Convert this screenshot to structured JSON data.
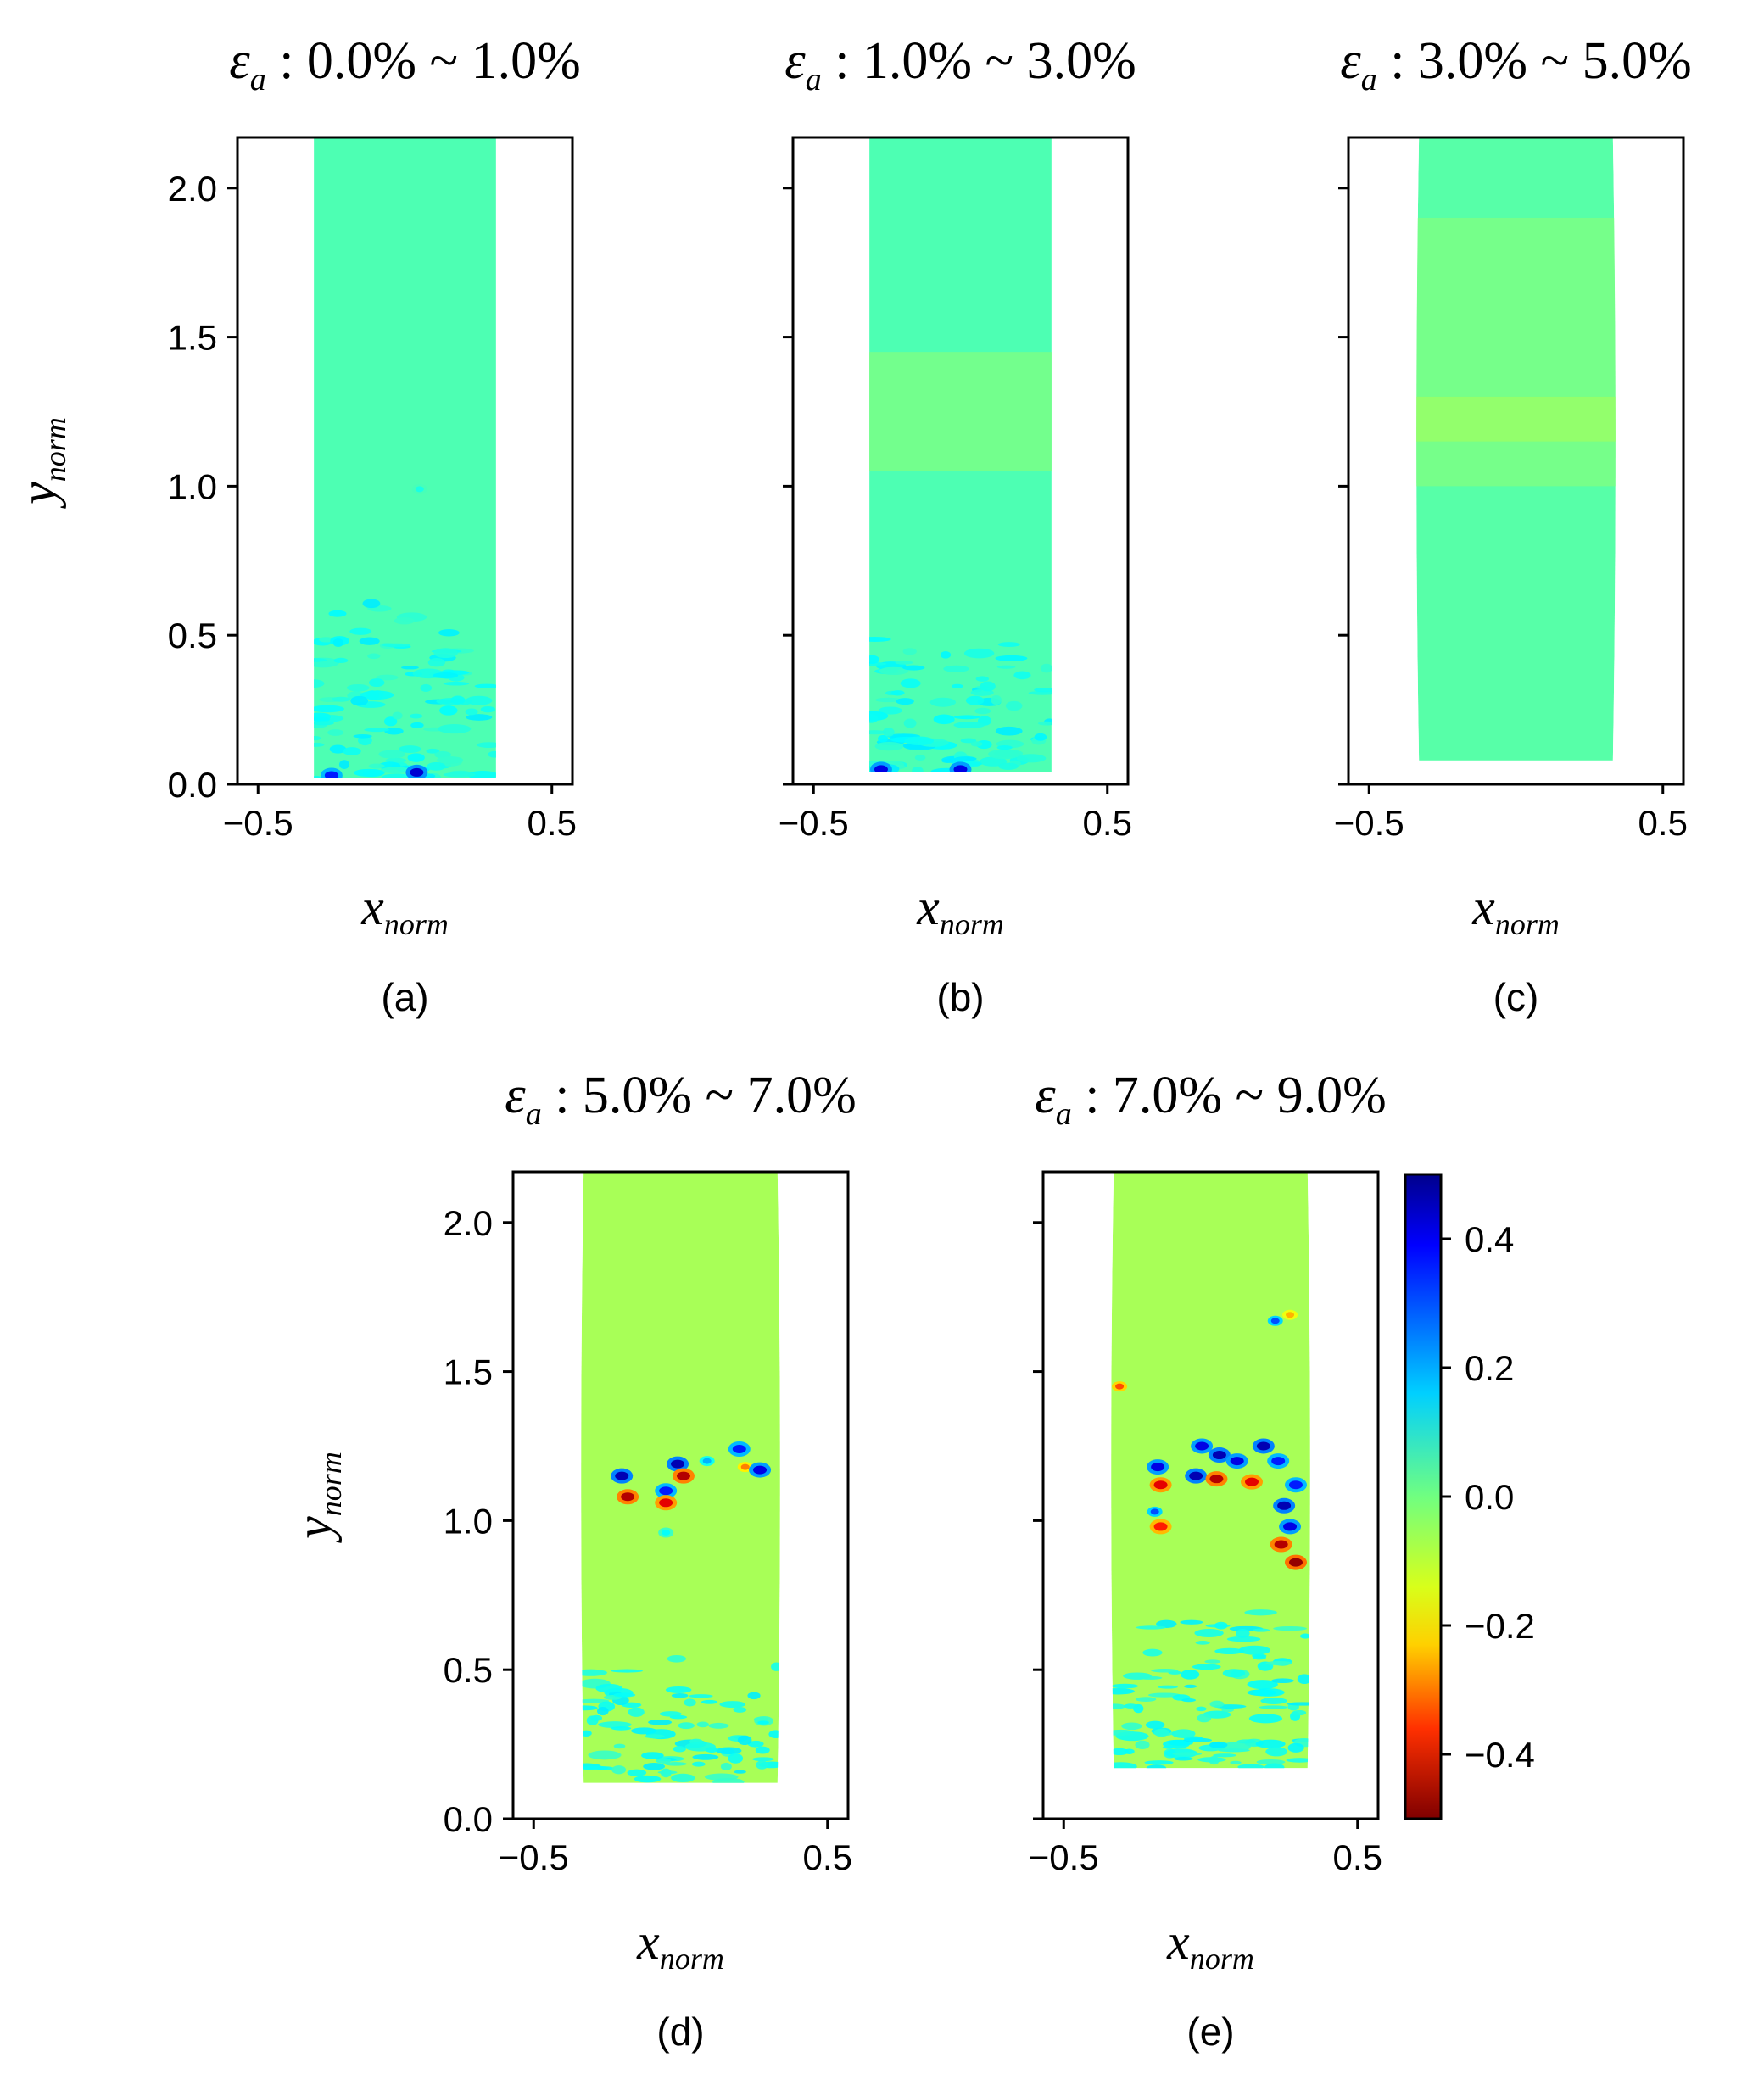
{
  "figure": {
    "colorbar": {
      "range": [
        -0.5,
        0.5
      ],
      "ticks": [
        "0.4",
        "0.2",
        "0.0",
        "−0.2",
        "−0.4"
      ],
      "tick_values": [
        0.4,
        0.2,
        0.0,
        -0.2,
        -0.4
      ],
      "colormap": "jet-reversed (blue high, red low)"
    },
    "colors": {
      "axis": "#000000",
      "field_light_green": "#80ff6e",
      "field_yellow_green": "#b4ff3c",
      "cyan": "#3ce6c8",
      "blue": "#0050ff",
      "dark_blue": "#00008c",
      "red": "#e60000",
      "dark_red": "#800000",
      "orange": "#ffa000"
    }
  },
  "chart_data": [
    {
      "type": "heatmap",
      "panel": "(a)",
      "title_symbol": "ε",
      "title_sub": "a",
      "title_range": " : 0.0% ~ 1.0%",
      "xlabel": "x",
      "xlabel_sub": "norm",
      "ylabel": "y",
      "ylabel_sub": "norm",
      "xlim": [
        -0.57,
        0.57
      ],
      "ylim": [
        0.0,
        2.17
      ],
      "xticks": [
        "−0.5",
        "0.5"
      ],
      "xtick_values": [
        -0.5,
        0.5
      ],
      "yticks": [
        "0.0",
        "0.5",
        "1.0",
        "1.5",
        "2.0"
      ],
      "ytick_values": [
        0.0,
        0.5,
        1.0,
        1.5,
        2.0
      ],
      "specimen": {
        "x_left": -0.31,
        "x_right": 0.31,
        "y_bottom": 0.02,
        "y_top": 2.17,
        "base_value": 0.05
      },
      "features": [
        {
          "kind": "noise_band",
          "y_from": 0.02,
          "y_to": 0.62,
          "value": 0.12
        },
        {
          "kind": "spot",
          "x": 0.04,
          "y": 0.04,
          "value": 0.42
        },
        {
          "kind": "spot",
          "x": -0.25,
          "y": 0.03,
          "value": 0.35
        },
        {
          "kind": "spot",
          "x": 0.05,
          "y": 0.99,
          "value": 0.1
        }
      ]
    },
    {
      "type": "heatmap",
      "panel": "(b)",
      "title_symbol": "ε",
      "title_sub": "a",
      "title_range": " : 1.0% ~ 3.0%",
      "xlabel": "x",
      "xlabel_sub": "norm",
      "ylabel": "",
      "ylabel_sub": "",
      "xlim": [
        -0.57,
        0.57
      ],
      "ylim": [
        0.0,
        2.17
      ],
      "xticks": [
        "−0.5",
        "0.5"
      ],
      "xtick_values": [
        -0.5,
        0.5
      ],
      "yticks": [
        "",
        "",
        "",
        "",
        ""
      ],
      "ytick_values": [
        0.0,
        0.5,
        1.0,
        1.5,
        2.0
      ],
      "specimen": {
        "x_left": -0.31,
        "x_right": 0.31,
        "y_bottom": 0.04,
        "y_top": 2.17,
        "base_value": 0.05
      },
      "features": [
        {
          "kind": "noise_band",
          "y_from": 0.04,
          "y_to": 0.55,
          "value": 0.12
        },
        {
          "kind": "band",
          "y_from": 1.05,
          "y_to": 1.45,
          "value": 0.0
        },
        {
          "kind": "spot",
          "x": -0.27,
          "y": 0.05,
          "value": 0.4
        },
        {
          "kind": "spot",
          "x": 0.0,
          "y": 0.05,
          "value": 0.4
        }
      ]
    },
    {
      "type": "heatmap",
      "panel": "(c)",
      "title_symbol": "ε",
      "title_sub": "a",
      "title_range": " : 3.0% ~ 5.0%",
      "xlabel": "x",
      "xlabel_sub": "norm",
      "ylabel": "",
      "ylabel_sub": "",
      "xlim": [
        -0.57,
        0.57
      ],
      "ylim": [
        0.0,
        2.17
      ],
      "xticks": [
        "−0.5",
        "0.5"
      ],
      "xtick_values": [
        -0.5,
        0.5
      ],
      "yticks": [
        "",
        "",
        "",
        "",
        ""
      ],
      "ytick_values": [
        0.0,
        0.5,
        1.0,
        1.5,
        2.0
      ],
      "specimen": {
        "x_left": -0.33,
        "x_right": 0.33,
        "y_bottom": 0.08,
        "y_top": 2.17,
        "base_value": 0.04
      },
      "features": [
        {
          "kind": "band",
          "y_from": 1.0,
          "y_to": 1.9,
          "value": 0.0
        },
        {
          "kind": "band",
          "y_from": 1.15,
          "y_to": 1.3,
          "value": -0.03
        }
      ]
    },
    {
      "type": "heatmap",
      "panel": "(d)",
      "title_symbol": "ε",
      "title_sub": "a",
      "title_range": " : 5.0% ~ 7.0%",
      "xlabel": "x",
      "xlabel_sub": "norm",
      "ylabel": "y",
      "ylabel_sub": "norm",
      "xlim": [
        -0.57,
        0.57
      ],
      "ylim": [
        0.0,
        2.17
      ],
      "xticks": [
        "−0.5",
        "0.5"
      ],
      "xtick_values": [
        -0.5,
        0.5
      ],
      "yticks": [
        "0.0",
        "0.5",
        "1.0",
        "1.5",
        "2.0"
      ],
      "ytick_values": [
        0.0,
        0.5,
        1.0,
        1.5,
        2.0
      ],
      "specimen": {
        "x_left": -0.33,
        "x_right": 0.33,
        "y_bottom": 0.12,
        "y_top": 2.17,
        "base_value": -0.04
      },
      "features": [
        {
          "kind": "noise_band",
          "y_from": 0.12,
          "y_to": 0.55,
          "value": 0.12
        },
        {
          "kind": "spot",
          "x": -0.2,
          "y": 1.15,
          "value": 0.45
        },
        {
          "kind": "spot",
          "x": -0.18,
          "y": 1.08,
          "value": -0.45
        },
        {
          "kind": "spot",
          "x": -0.05,
          "y": 1.1,
          "value": 0.35
        },
        {
          "kind": "spot",
          "x": -0.05,
          "y": 1.06,
          "value": -0.4
        },
        {
          "kind": "spot",
          "x": -0.01,
          "y": 1.19,
          "value": 0.45
        },
        {
          "kind": "spot",
          "x": 0.01,
          "y": 1.15,
          "value": -0.45
        },
        {
          "kind": "spot",
          "x": 0.09,
          "y": 1.2,
          "value": 0.2
        },
        {
          "kind": "spot",
          "x": 0.2,
          "y": 1.24,
          "value": 0.35
        },
        {
          "kind": "spot",
          "x": 0.22,
          "y": 1.18,
          "value": -0.25
        },
        {
          "kind": "spot",
          "x": 0.27,
          "y": 1.17,
          "value": 0.4
        },
        {
          "kind": "spot",
          "x": -0.05,
          "y": 0.96,
          "value": 0.12
        }
      ]
    },
    {
      "type": "heatmap",
      "panel": "(e)",
      "title_symbol": "ε",
      "title_sub": "a",
      "title_range": " : 7.0% ~ 9.0%",
      "xlabel": "x",
      "xlabel_sub": "norm",
      "ylabel": "",
      "ylabel_sub": "",
      "xlim": [
        -0.57,
        0.57
      ],
      "ylim": [
        0.0,
        2.17
      ],
      "xticks": [
        "−0.5",
        "0.5"
      ],
      "xtick_values": [
        -0.5,
        0.5
      ],
      "yticks": [
        "",
        "",
        "",
        "",
        ""
      ],
      "ytick_values": [
        0.0,
        0.5,
        1.0,
        1.5,
        2.0
      ],
      "specimen": {
        "x_left": -0.33,
        "x_right": 0.33,
        "y_bottom": 0.17,
        "y_top": 2.17,
        "base_value": -0.04
      },
      "features": [
        {
          "kind": "noise_band",
          "y_from": 0.17,
          "y_to": 0.72,
          "value": 0.12
        },
        {
          "kind": "spot",
          "x": -0.18,
          "y": 1.18,
          "value": 0.4
        },
        {
          "kind": "spot",
          "x": -0.17,
          "y": 1.12,
          "value": -0.4
        },
        {
          "kind": "spot",
          "x": -0.19,
          "y": 1.03,
          "value": 0.3
        },
        {
          "kind": "spot",
          "x": -0.17,
          "y": 0.98,
          "value": -0.35
        },
        {
          "kind": "spot",
          "x": -0.05,
          "y": 1.15,
          "value": 0.45
        },
        {
          "kind": "spot",
          "x": -0.03,
          "y": 1.25,
          "value": 0.4
        },
        {
          "kind": "spot",
          "x": 0.03,
          "y": 1.22,
          "value": 0.45
        },
        {
          "kind": "spot",
          "x": 0.02,
          "y": 1.14,
          "value": -0.45
        },
        {
          "kind": "spot",
          "x": 0.09,
          "y": 1.2,
          "value": 0.4
        },
        {
          "kind": "spot",
          "x": 0.14,
          "y": 1.13,
          "value": -0.4
        },
        {
          "kind": "spot",
          "x": 0.18,
          "y": 1.25,
          "value": 0.45
        },
        {
          "kind": "spot",
          "x": 0.23,
          "y": 1.2,
          "value": 0.35
        },
        {
          "kind": "spot",
          "x": 0.25,
          "y": 1.05,
          "value": 0.45
        },
        {
          "kind": "spot",
          "x": 0.27,
          "y": 0.98,
          "value": 0.4
        },
        {
          "kind": "spot",
          "x": 0.24,
          "y": 0.92,
          "value": -0.45
        },
        {
          "kind": "spot",
          "x": 0.29,
          "y": 0.86,
          "value": -0.48
        },
        {
          "kind": "spot",
          "x": 0.29,
          "y": 1.12,
          "value": 0.35
        },
        {
          "kind": "spot",
          "x": 0.22,
          "y": 1.67,
          "value": 0.3
        },
        {
          "kind": "spot",
          "x": 0.27,
          "y": 1.69,
          "value": -0.2
        },
        {
          "kind": "spot",
          "x": -0.31,
          "y": 1.45,
          "value": -0.3
        }
      ]
    }
  ]
}
